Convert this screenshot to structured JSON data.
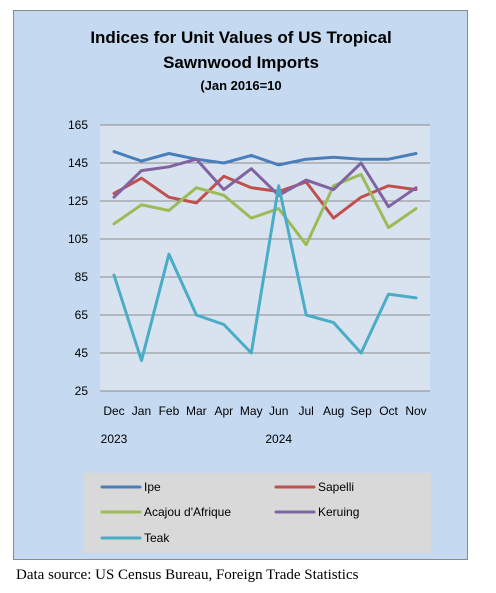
{
  "chart_data": {
    "type": "line",
    "title_lines": [
      "Indices for Unit Values of US Tropical",
      "Sawnwood Imports",
      "(Jan 2016=10"
    ],
    "categories": [
      "Dec",
      "Jan",
      "Feb",
      "Mar",
      "Apr",
      "May",
      "Jun",
      "Jul",
      "Aug",
      "Sep",
      "Oct",
      "Nov"
    ],
    "year_labels": [
      {
        "label": "2023",
        "at_category": "Dec"
      },
      {
        "label": "2024",
        "at_category": "Jun"
      }
    ],
    "ylim": [
      25,
      165
    ],
    "yticks": [
      165,
      145,
      125,
      105,
      85,
      65,
      45,
      25
    ],
    "grid": true,
    "legend_position": "bottom",
    "series": [
      {
        "name": "Ipe",
        "color": "#4a7ebb",
        "values": [
          151,
          146,
          150,
          147,
          145,
          149,
          144,
          147,
          148,
          147,
          147,
          150
        ]
      },
      {
        "name": "Sapelli",
        "color": "#c0504d",
        "values": [
          129,
          137,
          127,
          124,
          138,
          132,
          130,
          135,
          116,
          127,
          133,
          131
        ]
      },
      {
        "name": "Acajou d'Afrique",
        "color": "#9bbb59",
        "values": [
          113,
          123,
          120,
          132,
          128,
          116,
          121,
          102,
          133,
          139,
          111,
          121
        ]
      },
      {
        "name": "Keruing",
        "color": "#8064a2",
        "values": [
          127,
          141,
          143,
          147,
          131,
          142,
          128,
          136,
          131,
          145,
          122,
          132
        ]
      },
      {
        "name": "Teak",
        "color": "#4bacc6",
        "values": [
          86,
          41,
          97,
          65,
          60,
          45,
          133,
          65,
          61,
          45,
          76,
          74
        ]
      }
    ]
  },
  "source_note": "Data source: US Census Bureau, Foreign Trade Statistics"
}
